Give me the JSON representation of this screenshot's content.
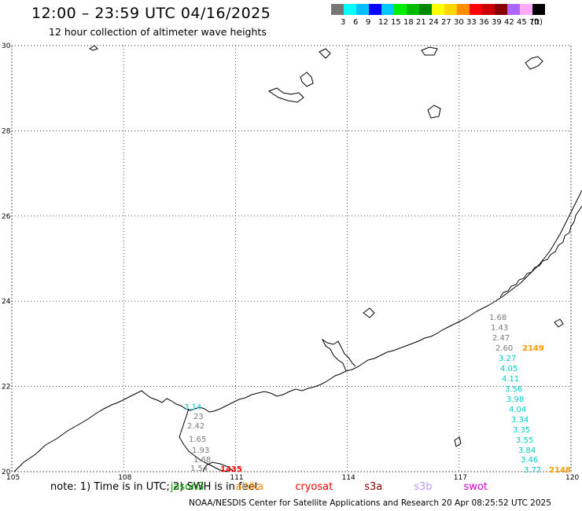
{
  "header": {
    "title": "12:00 – 23:59 UTC 04/16/2025",
    "subtitle": "12 hour collection of altimeter wave heights"
  },
  "legend": {
    "colors": [
      "#777777",
      "#00ffff",
      "#00bfff",
      "#0000ff",
      "#00c8ff",
      "#00ee00",
      "#00bb00",
      "#008800",
      "#ffff00",
      "#ffd700",
      "#ff8c00",
      "#ff0000",
      "#cc0000",
      "#880000",
      "#aa66ff",
      "#ffaaff",
      "#000000"
    ],
    "labels": [
      "3",
      "6",
      "9",
      "12",
      "15",
      "18",
      "21",
      "24",
      "27",
      "30",
      "33",
      "36",
      "39",
      "42",
      "45",
      "70",
      "(ft)"
    ]
  },
  "axes": {
    "lon_ticks": [
      "105",
      "108",
      "111",
      "114",
      "117",
      "120"
    ],
    "lat_ticks": [
      "30",
      "28",
      "26",
      "24",
      "22",
      "20"
    ]
  },
  "observations": {
    "gray": [
      "1.68",
      "1.43",
      "2.47",
      "2.60"
    ],
    "cyan": [
      "3.27",
      "4.05",
      "4.11",
      "3.56",
      "3.98",
      "4.04",
      "3.34",
      "3.35",
      "3.55",
      "3.84",
      "3.46",
      "3.77"
    ],
    "orange": [
      "2149",
      "2148"
    ],
    "left_cyan": [
      "3.14"
    ],
    "left_gray": [
      "23",
      "2.42",
      "1.65",
      "1.93",
      "1.68",
      "1.54"
    ],
    "red": [
      "1435"
    ]
  },
  "notes": {
    "prefix": "note: 1) Time is in UTC; 2) SWH is in feet",
    "satellites": [
      {
        "name": "jason3",
        "color": "#009900"
      },
      {
        "name": "altika",
        "color": "#ff8c00"
      },
      {
        "name": "cryosat",
        "color": "#ff0000"
      },
      {
        "name": "s3a",
        "color": "#880000"
      },
      {
        "name": "s3b",
        "color": "#bb99ff"
      },
      {
        "name": "swot",
        "color": "#cc00cc"
      }
    ]
  },
  "credit": "NOAA/NESDIS Center for Satellite Applications and Research     20 Apr 08:25:52 UTC 2025"
}
